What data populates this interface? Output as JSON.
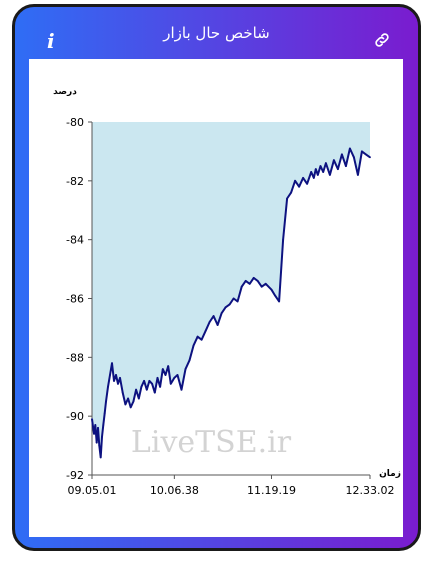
{
  "header": {
    "title": "شاخص حال بازار",
    "info_icon": "i",
    "link_icon": "link-icon"
  },
  "colors": {
    "gradient_start": "#2f6df5",
    "gradient_end": "#7a1ccf",
    "area_fill": "#cbe7f0",
    "line": "#0d1280",
    "watermark": "#d3d3d3"
  },
  "watermark": "LiveTSE.ir",
  "chart_data": {
    "type": "line",
    "ylabel": "درصد",
    "xlabel": "زمان",
    "ylim": [
      -92,
      -80
    ],
    "yticks": [
      -80,
      -82,
      -84,
      -86,
      -88,
      -90,
      -92
    ],
    "xticks": [
      "09.05.01",
      "10.06.38",
      "11.19.19",
      "12.33.02"
    ],
    "xrange": [
      "09.05.01",
      "12.33.02"
    ],
    "area_fill_to": -80,
    "series": [
      {
        "x": [
          "09.05.01",
          "09.06.30",
          "09.07.30",
          "09.08.30",
          "09.09.30",
          "09.10.30",
          "09.11.30",
          "09.12.30",
          "09.13.30",
          "09.14.30",
          "09.15.30",
          "09.17.00",
          "09.18.30",
          "09.20.00",
          "09.21.30",
          "09.23.00",
          "09.24.30",
          "09.26.00",
          "09.28.00",
          "09.30.00",
          "09.32.00",
          "09.34.00",
          "09.36.00",
          "09.38.00",
          "09.40.00",
          "09.42.00",
          "09.44.00",
          "09.46.00",
          "09.48.00",
          "09.50.00",
          "09.52.00",
          "09.54.00",
          "09.56.00",
          "09.58.00",
          "10.00.00",
          "10.02.00",
          "10.04.00",
          "10.06.38",
          "10.09.00",
          "10.12.00",
          "10.15.00",
          "10.18.00",
          "10.21.00",
          "10.24.00",
          "10.27.00",
          "10.30.00",
          "10.33.00",
          "10.36.00",
          "10.39.00",
          "10.42.00",
          "10.45.00",
          "10.48.00",
          "10.51.00",
          "10.54.00",
          "10.57.00",
          "11.00.00",
          "11.03.00",
          "11.06.00",
          "11.09.00",
          "11.12.00",
          "11.15.00",
          "11.19.19",
          "11.22.00",
          "11.25.00",
          "11.28.00",
          "11.31.00",
          "11.34.00",
          "11.37.00",
          "11.40.00",
          "11.43.00",
          "11.46.00",
          "11.49.00",
          "11.51.00",
          "11.52.30",
          "11.54.00",
          "11.56.00",
          "11.58.00",
          "12.00.00",
          "12.03.00",
          "12.06.00",
          "12.09.00",
          "12.12.00",
          "12.15.00",
          "12.18.00",
          "12.21.00",
          "12.24.00",
          "12.27.00",
          "12.30.00",
          "12.33.02"
        ],
        "y": [
          -90.1,
          -90.6,
          -90.3,
          -90.9,
          -90.4,
          -91.0,
          -91.4,
          -90.7,
          -90.3,
          -89.9,
          -89.5,
          -89.0,
          -88.6,
          -88.2,
          -88.8,
          -88.6,
          -88.9,
          -88.7,
          -89.2,
          -89.6,
          -89.4,
          -89.7,
          -89.5,
          -89.1,
          -89.4,
          -89.0,
          -88.8,
          -89.1,
          -88.8,
          -88.9,
          -89.2,
          -88.7,
          -89.0,
          -88.4,
          -88.6,
          -88.3,
          -88.9,
          -88.7,
          -88.6,
          -89.1,
          -88.4,
          -88.1,
          -87.6,
          -87.3,
          -87.4,
          -87.1,
          -86.8,
          -86.6,
          -86.9,
          -86.5,
          -86.3,
          -86.2,
          -86.0,
          -86.1,
          -85.6,
          -85.4,
          -85.5,
          -85.3,
          -85.4,
          -85.6,
          -85.5,
          -85.7,
          -85.9,
          -86.1,
          -84.0,
          -82.6,
          -82.4,
          -82.0,
          -82.2,
          -81.9,
          -82.1,
          -81.7,
          -81.9,
          -81.6,
          -81.8,
          -81.5,
          -81.7,
          -81.4,
          -81.8,
          -81.3,
          -81.6,
          -81.1,
          -81.5,
          -80.9,
          -81.2,
          -81.8,
          -81.0,
          -81.1,
          -81.2
        ]
      }
    ]
  }
}
